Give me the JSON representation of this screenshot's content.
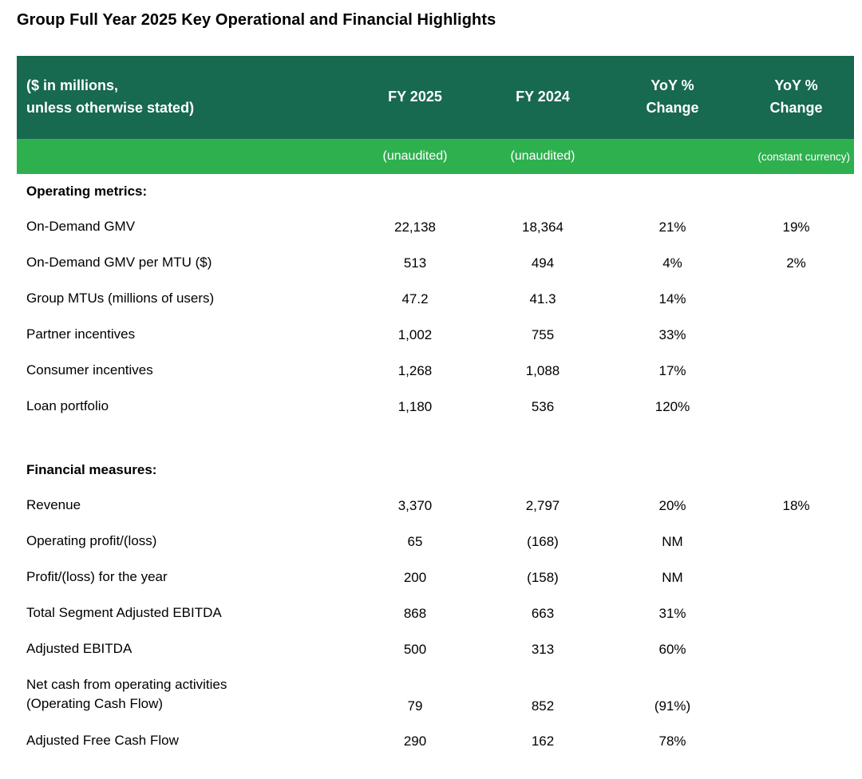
{
  "page_title": "Group Full Year 2025 Key Operational and Financial Highlights",
  "colors": {
    "header_bg": "#176950",
    "subheader_bg": "#2FB04F",
    "header_text": "#FFFFFF",
    "body_text": "#000000"
  },
  "table": {
    "header": {
      "label_line1": "($ in millions,",
      "label_line2": "unless otherwise stated)",
      "fy2025": "FY 2025",
      "fy2024": "FY 2024",
      "yoy_line1": "YoY %",
      "yoy_line2": "Change",
      "yoy_cc_line1": "YoY %",
      "yoy_cc_line2": "Change",
      "sub_fy2025": "(unaudited)",
      "sub_fy2024": "(unaudited)",
      "sub_yoy": "",
      "sub_yoy_cc": "(constant currency)"
    },
    "sections": [
      {
        "title": "Operating metrics:",
        "rows": [
          {
            "label": "On-Demand GMV",
            "fy2025": "22,138",
            "fy2024": "18,364",
            "yoy": "21%",
            "yoy_cc": "19%"
          },
          {
            "label": "On-Demand GMV per MTU ($)",
            "fy2025": "513",
            "fy2024": "494",
            "yoy": "4%",
            "yoy_cc": "2%"
          },
          {
            "label": "Group MTUs (millions of users)",
            "fy2025": "47.2",
            "fy2024": "41.3",
            "yoy": "14%",
            "yoy_cc": ""
          },
          {
            "label": "Partner incentives",
            "fy2025": "1,002",
            "fy2024": "755",
            "yoy": "33%",
            "yoy_cc": ""
          },
          {
            "label": "Consumer incentives",
            "fy2025": "1,268",
            "fy2024": "1,088",
            "yoy": "17%",
            "yoy_cc": ""
          },
          {
            "label": "Loan portfolio",
            "fy2025": "1,180",
            "fy2024": "536",
            "yoy": "120%",
            "yoy_cc": ""
          }
        ]
      },
      {
        "title": "Financial measures:",
        "rows": [
          {
            "label": "Revenue",
            "fy2025": "3,370",
            "fy2024": "2,797",
            "yoy": "20%",
            "yoy_cc": "18%"
          },
          {
            "label": "Operating profit/(loss)",
            "fy2025": "65",
            "fy2024": "(168)",
            "yoy": "NM",
            "yoy_cc": ""
          },
          {
            "label": "Profit/(loss) for the year",
            "fy2025": "200",
            "fy2024": "(158)",
            "yoy": "NM",
            "yoy_cc": ""
          },
          {
            "label": "Total Segment Adjusted EBITDA",
            "fy2025": "868",
            "fy2024": "663",
            "yoy": "31%",
            "yoy_cc": ""
          },
          {
            "label": "Adjusted EBITDA",
            "fy2025": "500",
            "fy2024": "313",
            "yoy": "60%",
            "yoy_cc": ""
          },
          {
            "label": "Net cash from operating activities\n(Operating Cash Flow)",
            "fy2025": "79",
            "fy2024": "852",
            "yoy": "(91%)",
            "yoy_cc": "",
            "two_line": true
          },
          {
            "label": "Adjusted Free Cash Flow",
            "fy2025": "290",
            "fy2024": "162",
            "yoy": "78%",
            "yoy_cc": ""
          }
        ]
      }
    ]
  }
}
